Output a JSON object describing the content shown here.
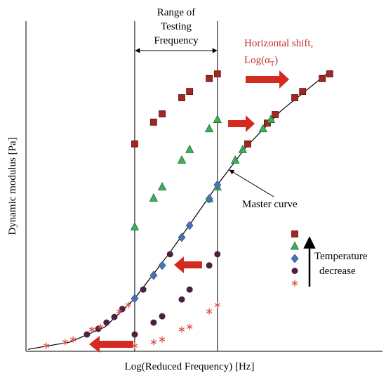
{
  "chart_data": {
    "type": "scatter",
    "xlabel": "Log(Reduced Frequency) [Hz]",
    "ylabel": "Dynamic modulus [Pa]",
    "xlim": [
      0,
      10
    ],
    "ylim": [
      0,
      10
    ],
    "range_title": [
      "Range of",
      "Testing",
      "Frequency"
    ],
    "range_x": [
      3.05,
      5.37
    ],
    "shift_label": {
      "line1": "Horizontal shift,",
      "line2": "Log(α",
      "sub": "T",
      "end": ")"
    },
    "curve_label": "Master curve",
    "legend_label": [
      "Temperature",
      "decrease"
    ],
    "master_curve": {
      "color": "#000000",
      "x": [
        0.06,
        1.24,
        2.22,
        3.05,
        4.0,
        4.59,
        5.37,
        6.16,
        7.15,
        8.56
      ],
      "y": [
        0.06,
        0.28,
        0.74,
        1.6,
        2.94,
        3.83,
        5.04,
        6.17,
        7.28,
        8.51
      ]
    },
    "series": [
      {
        "marker": "square",
        "color": "#a3261f",
        "x": [
          3.05,
          3.58,
          3.82,
          4.37,
          4.59,
          5.14,
          5.37,
          6.22,
          6.77,
          6.99,
          7.54,
          7.76,
          8.31,
          8.52
        ],
        "y": [
          6.28,
          6.94,
          7.19,
          7.68,
          7.87,
          8.26,
          8.4,
          6.28,
          6.91,
          7.17,
          7.68,
          7.87,
          8.26,
          8.4
        ]
      },
      {
        "marker": "triangle",
        "color": "#3fae5a",
        "x": [
          3.05,
          3.58,
          3.82,
          4.37,
          4.59,
          5.14,
          5.37,
          5.14,
          5.37,
          5.87,
          6.08,
          6.65,
          6.87
        ],
        "y": [
          3.77,
          4.64,
          4.98,
          5.79,
          6.11,
          6.74,
          7.02,
          4.62,
          4.98,
          5.79,
          6.11,
          6.74,
          7.02
        ]
      },
      {
        "marker": "diamond",
        "color": "#4a72b0",
        "x": [
          3.05,
          3.58,
          3.82,
          4.37,
          4.59,
          5.14,
          5.37
        ],
        "y": [
          1.6,
          2.3,
          2.6,
          3.45,
          3.81,
          4.62,
          5.04
        ]
      },
      {
        "marker": "circle",
        "color": "#4b2040",
        "x": [
          3.05,
          3.58,
          3.82,
          4.37,
          4.59,
          5.14,
          5.37,
          1.71,
          2.03,
          2.26,
          2.48,
          2.7,
          3.29,
          4.04
        ],
        "y": [
          0.51,
          0.87,
          1.06,
          1.57,
          1.87,
          2.6,
          2.94,
          0.51,
          0.68,
          0.87,
          1.04,
          1.28,
          1.87,
          2.94
        ]
      },
      {
        "marker": "asterisk",
        "color": "#e0524a",
        "x": [
          3.05,
          3.58,
          3.82,
          4.37,
          4.59,
          5.14,
          5.37,
          0.57,
          1.1,
          1.32,
          1.85,
          2.09,
          2.62,
          2.87
        ],
        "y": [
          0.17,
          0.28,
          0.36,
          0.66,
          0.74,
          1.21,
          1.4,
          0.17,
          0.28,
          0.36,
          0.66,
          0.74,
          1.21,
          1.4
        ]
      }
    ]
  }
}
